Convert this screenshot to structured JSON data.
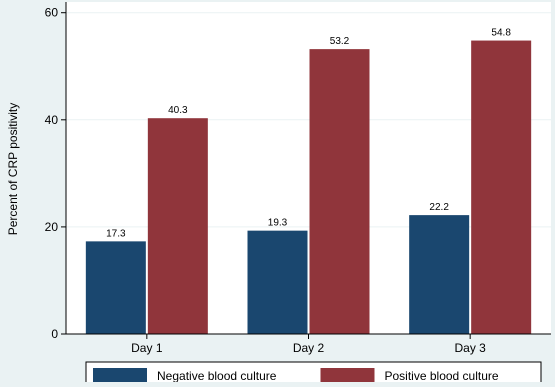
{
  "chart_data": {
    "type": "bar",
    "title": "",
    "xlabel": "",
    "ylabel": "Percent of CRP positivity",
    "ylim": [
      0,
      62
    ],
    "yticks": [
      0,
      20,
      40,
      60
    ],
    "categories": [
      "Day 1",
      "Day 2",
      "Day 3"
    ],
    "series": [
      {
        "name": "Negative blood culture",
        "color": "#1a476f",
        "values": [
          17.3,
          19.3,
          22.2
        ]
      },
      {
        "name": "Positive blood culture",
        "color": "#90353b",
        "values": [
          40.3,
          53.2,
          54.8
        ]
      }
    ],
    "grid": true,
    "legend": "bottom"
  }
}
